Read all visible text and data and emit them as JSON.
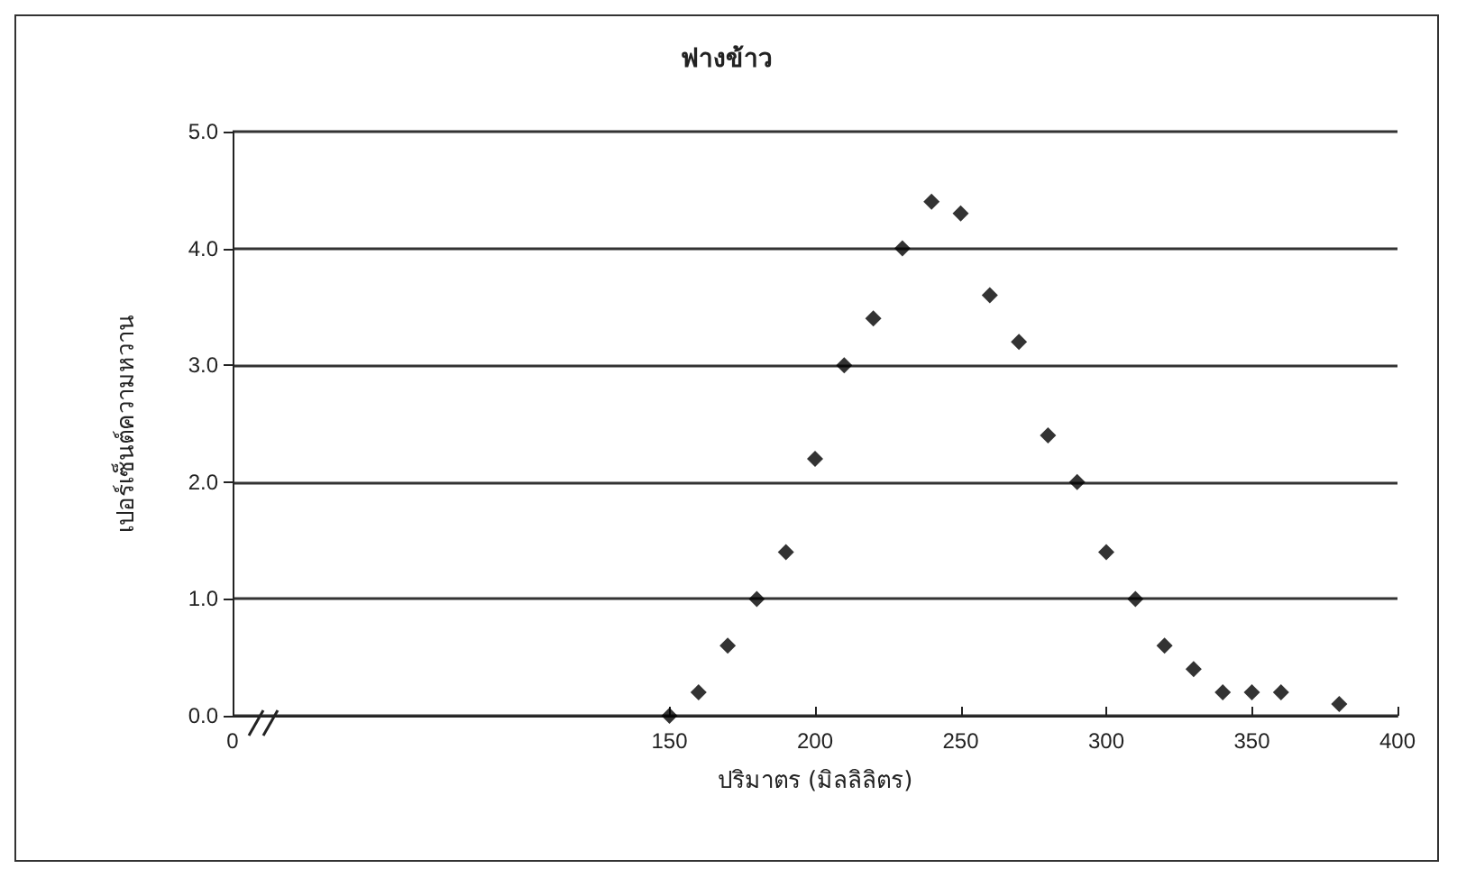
{
  "chart_data": {
    "type": "scatter",
    "title": "ฟางข้าว",
    "xlabel": "ปริมาตร (มิลลิลิตร)",
    "ylabel": "เปอร์เซ็นต์ความหวาน",
    "x": [
      150,
      160,
      170,
      180,
      190,
      200,
      210,
      220,
      230,
      240,
      250,
      260,
      270,
      280,
      290,
      300,
      310,
      320,
      330,
      340,
      350,
      360,
      380
    ],
    "series": [
      {
        "color": "#000000",
        "values": [
          0,
          0.2,
          0.6,
          1.0,
          1.4,
          2.2,
          3.0,
          3.4,
          4.0,
          4.4,
          4.3,
          3.6,
          3.2,
          2.4,
          2.0,
          1.4,
          1.0,
          0.6,
          0.4,
          0.2,
          0.2,
          0.2,
          0.1
        ]
      }
    ],
    "xlim": [
      0,
      400
    ],
    "xticks": [
      0,
      150,
      200,
      250,
      300,
      350,
      400
    ],
    "ylim": [
      0,
      5
    ],
    "yticks": [
      {
        "value": 0,
        "label": "0.0"
      },
      {
        "value": 1,
        "label": "1.0"
      },
      {
        "value": 2,
        "label": "2.0"
      },
      {
        "value": 3,
        "label": "3.0"
      },
      {
        "value": 4,
        "label": "4.0"
      },
      {
        "value": 5,
        "label": "5.0"
      }
    ],
    "grid": "y",
    "marker": "diamond"
  }
}
